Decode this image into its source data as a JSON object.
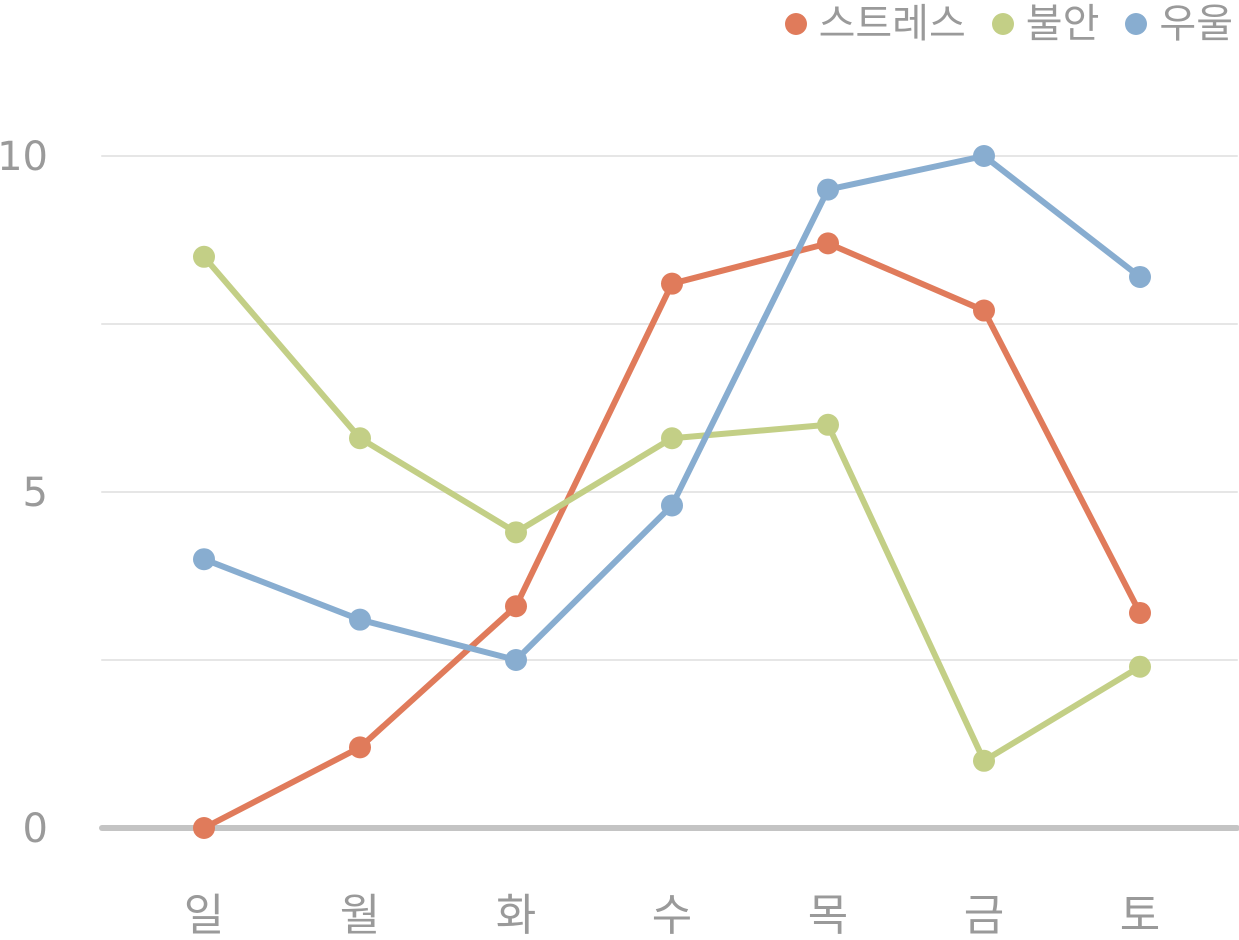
{
  "chart_data": {
    "type": "line",
    "title": "",
    "xlabel": "",
    "ylabel": "",
    "categories": [
      "일",
      "월",
      "화",
      "수",
      "목",
      "금",
      "토"
    ],
    "ylim": [
      0,
      10
    ],
    "y_ticks": [
      0,
      2.5,
      5,
      7.5,
      10
    ],
    "y_tick_labels": [
      "0",
      "",
      "5",
      "",
      "10"
    ],
    "grid": true,
    "legend_position": "top-right",
    "series": [
      {
        "name": "스트레스",
        "color": "#E07B5B",
        "values": [
          0,
          1.2,
          3.3,
          8.1,
          8.7,
          7.7,
          3.2
        ]
      },
      {
        "name": "불안",
        "color": "#C3CF86",
        "values": [
          8.5,
          5.8,
          4.4,
          5.8,
          6.0,
          1.0,
          2.4
        ]
      },
      {
        "name": "우울",
        "color": "#88ADD0",
        "values": [
          4.0,
          3.1,
          2.5,
          4.8,
          9.5,
          10.0,
          8.2
        ]
      }
    ]
  }
}
